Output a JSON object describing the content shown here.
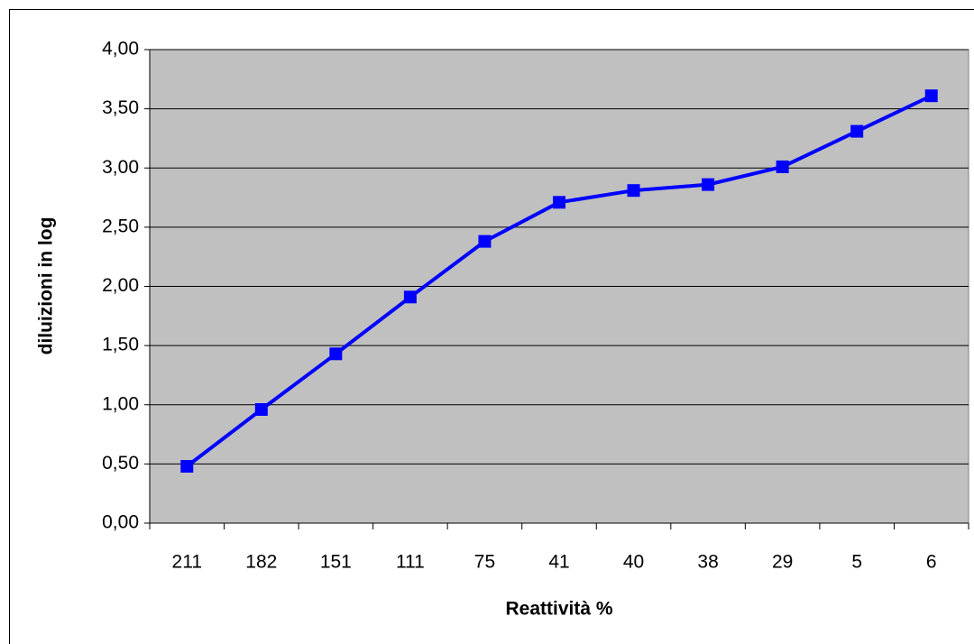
{
  "chart_data": {
    "type": "line",
    "x_label": "Reattività %",
    "y_label": "diluizioni in log",
    "categories": [
      "211",
      "182",
      "151",
      "111",
      "75",
      "41",
      "40",
      "38",
      "29",
      "5",
      "6"
    ],
    "series": [
      {
        "name": "diluizioni",
        "color": "#0000ff",
        "values": [
          0.48,
          0.96,
          1.43,
          1.91,
          2.38,
          2.71,
          2.81,
          2.86,
          3.01,
          3.31,
          3.61
        ]
      }
    ],
    "ylim": [
      0,
      4
    ],
    "yticks": [
      {
        "value": 0,
        "label": "0,00"
      },
      {
        "value": 0.5,
        "label": "0,50"
      },
      {
        "value": 1,
        "label": "1,00"
      },
      {
        "value": 1.5,
        "label": "1,50"
      },
      {
        "value": 2,
        "label": "2,00"
      },
      {
        "value": 2.5,
        "label": "2,50"
      },
      {
        "value": 3,
        "label": "3,00"
      },
      {
        "value": 3.5,
        "label": "3,50"
      },
      {
        "value": 4,
        "label": "4,00"
      }
    ],
    "grid": true,
    "plot_background": "#c0c0c0"
  }
}
